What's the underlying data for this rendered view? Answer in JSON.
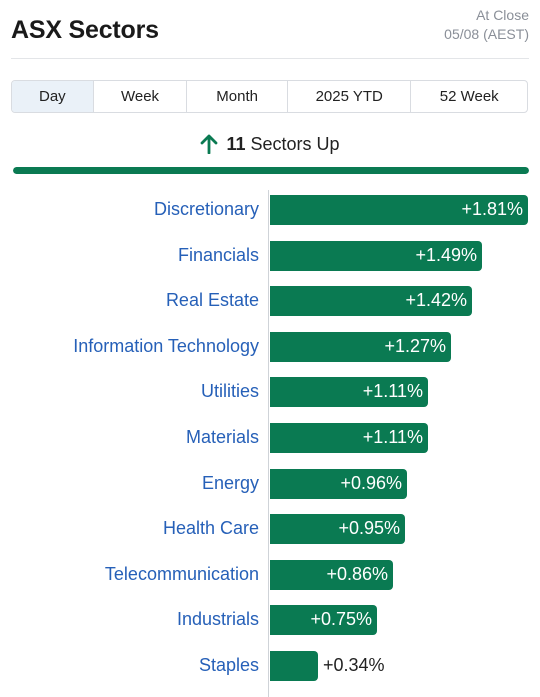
{
  "header": {
    "title": "ASX Sectors",
    "status": "At Close",
    "date": "05/08 (AEST)"
  },
  "tabs": [
    {
      "label": "Day",
      "active": true
    },
    {
      "label": "Week",
      "active": false
    },
    {
      "label": "Month",
      "active": false
    },
    {
      "label": "2025 YTD",
      "active": false
    },
    {
      "label": "52 Week",
      "active": false
    }
  ],
  "summary": {
    "count": "11",
    "text": "Sectors Up",
    "icon": "arrow-up-icon",
    "up_fraction": 1.0
  },
  "colors": {
    "positive": "#0a7a52",
    "label": "#2660b8",
    "active_tab": "#eaf1f8"
  },
  "chart_data": {
    "type": "bar",
    "orientation": "horizontal",
    "categories": [
      "Discretionary",
      "Financials",
      "Real Estate",
      "Information Technology",
      "Utilities",
      "Materials",
      "Energy",
      "Health Care",
      "Telecommunication",
      "Industrials",
      "Staples"
    ],
    "values": [
      1.81,
      1.49,
      1.42,
      1.27,
      1.11,
      1.11,
      0.96,
      0.95,
      0.86,
      0.75,
      0.34
    ],
    "value_labels": [
      "+1.81%",
      "+1.49%",
      "+1.42%",
      "+1.27%",
      "+1.11%",
      "+1.11%",
      "+0.96%",
      "+0.95%",
      "+0.86%",
      "+0.75%",
      "+0.34%"
    ],
    "unit": "%",
    "xlim": [
      0,
      1.81
    ]
  }
}
